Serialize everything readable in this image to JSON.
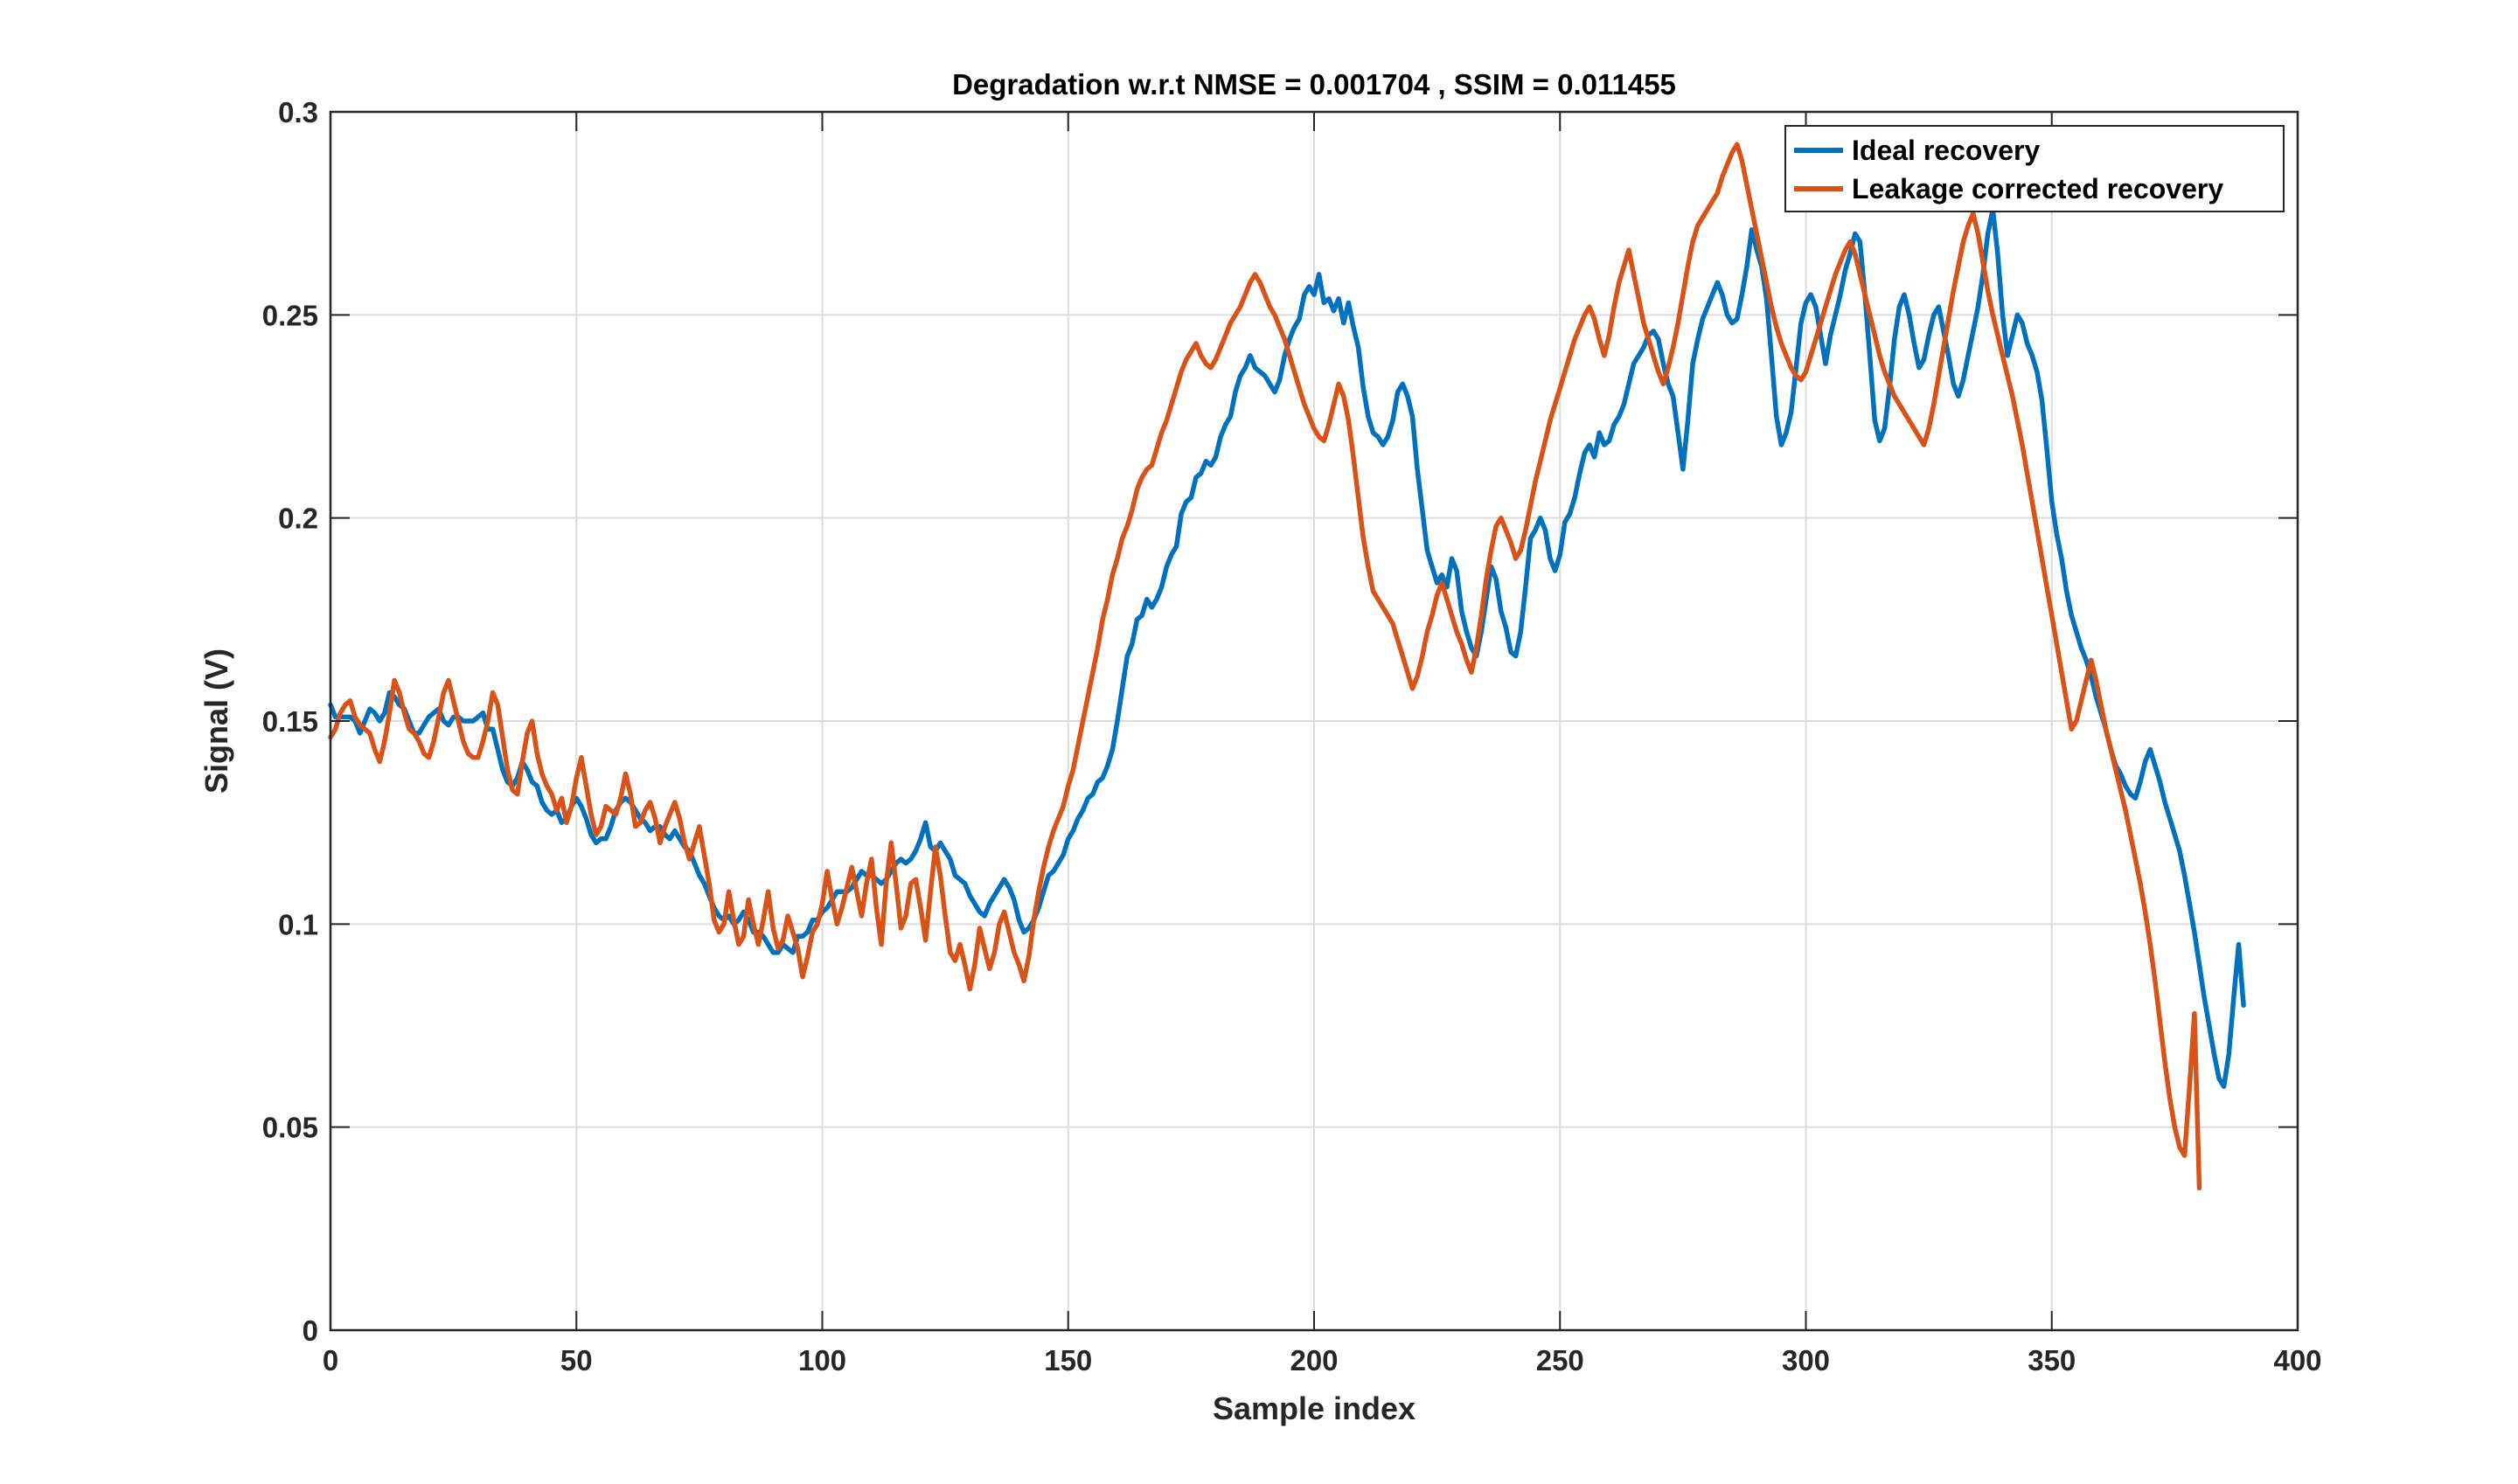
{
  "chart_data": {
    "type": "line",
    "title": "Degradation w.r.t NMSE = 0.001704 , SSIM = 0.011455",
    "xlabel": "Sample index",
    "ylabel": "Signal (V)",
    "xlim": [
      0,
      400
    ],
    "ylim": [
      0,
      0.3
    ],
    "xticks": [
      0,
      50,
      100,
      150,
      200,
      250,
      300,
      350,
      400
    ],
    "xtick_labels": [
      "0",
      "50",
      "100",
      "150",
      "200",
      "250",
      "300",
      "350",
      "400"
    ],
    "yticks": [
      0,
      0.05,
      0.1,
      0.15,
      0.2,
      0.25,
      0.3
    ],
    "ytick_labels": [
      "0",
      "0.05",
      "0.1",
      "0.15",
      "0.2",
      "0.25",
      "0.3"
    ],
    "grid": true,
    "legend_position": "top-right",
    "x_step": 1,
    "series": [
      {
        "name": "Ideal recovery",
        "color": "#0072BD",
        "x_start": 0,
        "values": [
          0.154,
          0.151,
          0.151,
          0.151,
          0.151,
          0.15,
          0.147,
          0.15,
          0.153,
          0.152,
          0.15,
          0.152,
          0.157,
          0.156,
          0.154,
          0.153,
          0.15,
          0.147,
          0.147,
          0.149,
          0.151,
          0.152,
          0.153,
          0.15,
          0.149,
          0.151,
          0.151,
          0.15,
          0.15,
          0.15,
          0.151,
          0.152,
          0.148,
          0.148,
          0.143,
          0.138,
          0.135,
          0.134,
          0.136,
          0.14,
          0.138,
          0.135,
          0.134,
          0.13,
          0.128,
          0.127,
          0.128,
          0.125,
          0.126,
          0.129,
          0.131,
          0.129,
          0.126,
          0.122,
          0.12,
          0.121,
          0.121,
          0.124,
          0.128,
          0.13,
          0.131,
          0.13,
          0.128,
          0.126,
          0.125,
          0.123,
          0.124,
          0.124,
          0.122,
          0.121,
          0.123,
          0.121,
          0.119,
          0.118,
          0.115,
          0.112,
          0.11,
          0.107,
          0.104,
          0.102,
          0.101,
          0.102,
          0.1,
          0.101,
          0.103,
          0.101,
          0.098,
          0.098,
          0.097,
          0.095,
          0.093,
          0.093,
          0.095,
          0.094,
          0.093,
          0.097,
          0.097,
          0.098,
          0.101,
          0.101,
          0.103,
          0.104,
          0.106,
          0.108,
          0.108,
          0.108,
          0.109,
          0.111,
          0.113,
          0.112,
          0.112,
          0.111,
          0.11,
          0.111,
          0.113,
          0.115,
          0.116,
          0.115,
          0.116,
          0.118,
          0.121,
          0.125,
          0.119,
          0.118,
          0.12,
          0.118,
          0.116,
          0.112,
          0.111,
          0.11,
          0.107,
          0.105,
          0.103,
          0.102,
          0.105,
          0.107,
          0.109,
          0.111,
          0.109,
          0.106,
          0.101,
          0.098,
          0.099,
          0.101,
          0.104,
          0.108,
          0.112,
          0.113,
          0.115,
          0.117,
          0.121,
          0.123,
          0.126,
          0.128,
          0.131,
          0.132,
          0.135,
          0.136,
          0.139,
          0.143,
          0.15,
          0.158,
          0.166,
          0.169,
          0.175,
          0.176,
          0.18,
          0.178,
          0.18,
          0.183,
          0.188,
          0.191,
          0.193,
          0.201,
          0.204,
          0.205,
          0.21,
          0.211,
          0.214,
          0.213,
          0.215,
          0.22,
          0.223,
          0.225,
          0.231,
          0.235,
          0.237,
          0.24,
          0.237,
          0.236,
          0.235,
          0.233,
          0.231,
          0.234,
          0.24,
          0.244,
          0.247,
          0.249,
          0.255,
          0.257,
          0.255,
          0.26,
          0.253,
          0.254,
          0.251,
          0.254,
          0.248,
          0.253,
          0.247,
          0.242,
          0.232,
          0.225,
          0.221,
          0.22,
          0.218,
          0.22,
          0.224,
          0.231,
          0.233,
          0.23,
          0.225,
          0.212,
          0.202,
          0.192,
          0.188,
          0.184,
          0.186,
          0.183,
          0.19,
          0.187,
          0.177,
          0.172,
          0.168,
          0.166,
          0.172,
          0.18,
          0.188,
          0.185,
          0.177,
          0.173,
          0.167,
          0.166,
          0.172,
          0.183,
          0.195,
          0.197,
          0.2,
          0.197,
          0.19,
          0.187,
          0.191,
          0.199,
          0.201,
          0.205,
          0.211,
          0.216,
          0.218,
          0.215,
          0.221,
          0.218,
          0.219,
          0.223,
          0.225,
          0.228,
          0.233,
          0.238,
          0.24,
          0.242,
          0.245,
          0.246,
          0.244,
          0.238,
          0.233,
          0.23,
          0.221,
          0.212,
          0.224,
          0.238,
          0.244,
          0.249,
          0.252,
          0.255,
          0.258,
          0.255,
          0.25,
          0.248,
          0.249,
          0.255,
          0.262,
          0.271,
          0.266,
          0.262,
          0.254,
          0.24,
          0.225,
          0.218,
          0.221,
          0.226,
          0.237,
          0.248,
          0.253,
          0.255,
          0.252,
          0.245,
          0.238,
          0.245,
          0.25,
          0.255,
          0.261,
          0.265,
          0.27,
          0.268,
          0.255,
          0.24,
          0.224,
          0.219,
          0.222,
          0.232,
          0.244,
          0.252,
          0.255,
          0.25,
          0.243,
          0.237,
          0.239,
          0.245,
          0.25,
          0.252,
          0.246,
          0.24,
          0.233,
          0.23,
          0.234,
          0.24,
          0.246,
          0.252,
          0.26,
          0.27,
          0.276,
          0.265,
          0.25,
          0.24,
          0.245,
          0.25,
          0.248,
          0.243,
          0.24,
          0.236,
          0.229,
          0.217,
          0.204,
          0.196,
          0.19,
          0.182,
          0.176,
          0.172,
          0.168,
          0.165,
          0.161,
          0.156,
          0.152,
          0.148,
          0.143,
          0.139,
          0.137,
          0.134,
          0.132,
          0.131,
          0.135,
          0.14,
          0.143,
          0.139,
          0.135,
          0.13,
          0.126,
          0.122,
          0.118,
          0.112,
          0.105,
          0.098,
          0.09,
          0.082,
          0.075,
          0.068,
          0.062,
          0.06,
          0.068,
          0.082,
          0.095,
          0.08
        ]
      },
      {
        "name": "Leakage corrected recovery",
        "color": "#D95319",
        "x_start": 0,
        "values": [
          0.146,
          0.148,
          0.152,
          0.154,
          0.155,
          0.151,
          0.149,
          0.148,
          0.147,
          0.143,
          0.14,
          0.145,
          0.152,
          0.16,
          0.157,
          0.152,
          0.148,
          0.147,
          0.145,
          0.142,
          0.141,
          0.145,
          0.151,
          0.157,
          0.16,
          0.155,
          0.15,
          0.145,
          0.142,
          0.141,
          0.141,
          0.145,
          0.15,
          0.157,
          0.154,
          0.146,
          0.138,
          0.133,
          0.132,
          0.14,
          0.147,
          0.15,
          0.142,
          0.137,
          0.134,
          0.132,
          0.128,
          0.131,
          0.125,
          0.129,
          0.136,
          0.141,
          0.134,
          0.127,
          0.122,
          0.124,
          0.129,
          0.128,
          0.127,
          0.131,
          0.137,
          0.132,
          0.124,
          0.125,
          0.128,
          0.13,
          0.126,
          0.12,
          0.124,
          0.127,
          0.13,
          0.126,
          0.12,
          0.116,
          0.12,
          0.124,
          0.117,
          0.11,
          0.101,
          0.098,
          0.1,
          0.108,
          0.101,
          0.095,
          0.097,
          0.106,
          0.1,
          0.095,
          0.101,
          0.108,
          0.099,
          0.094,
          0.096,
          0.102,
          0.098,
          0.094,
          0.087,
          0.092,
          0.098,
          0.1,
          0.105,
          0.113,
          0.106,
          0.1,
          0.104,
          0.109,
          0.114,
          0.108,
          0.102,
          0.11,
          0.116,
          0.104,
          0.095,
          0.11,
          0.12,
          0.11,
          0.099,
          0.102,
          0.11,
          0.111,
          0.104,
          0.096,
          0.108,
          0.119,
          0.112,
          0.102,
          0.093,
          0.091,
          0.095,
          0.09,
          0.084,
          0.09,
          0.099,
          0.094,
          0.089,
          0.093,
          0.1,
          0.103,
          0.098,
          0.093,
          0.09,
          0.086,
          0.092,
          0.101,
          0.108,
          0.114,
          0.119,
          0.123,
          0.126,
          0.129,
          0.134,
          0.138,
          0.144,
          0.15,
          0.156,
          0.162,
          0.168,
          0.175,
          0.18,
          0.186,
          0.19,
          0.195,
          0.198,
          0.202,
          0.207,
          0.21,
          0.212,
          0.213,
          0.217,
          0.221,
          0.224,
          0.228,
          0.232,
          0.236,
          0.239,
          0.241,
          0.243,
          0.24,
          0.238,
          0.237,
          0.239,
          0.242,
          0.245,
          0.248,
          0.25,
          0.252,
          0.255,
          0.258,
          0.26,
          0.258,
          0.255,
          0.252,
          0.25,
          0.247,
          0.244,
          0.24,
          0.236,
          0.232,
          0.228,
          0.225,
          0.222,
          0.22,
          0.219,
          0.223,
          0.228,
          0.233,
          0.23,
          0.224,
          0.215,
          0.205,
          0.195,
          0.188,
          0.182,
          0.18,
          0.178,
          0.176,
          0.174,
          0.17,
          0.166,
          0.162,
          0.158,
          0.161,
          0.166,
          0.172,
          0.176,
          0.181,
          0.184,
          0.18,
          0.176,
          0.172,
          0.169,
          0.165,
          0.162,
          0.168,
          0.176,
          0.185,
          0.192,
          0.198,
          0.2,
          0.197,
          0.194,
          0.19,
          0.192,
          0.197,
          0.203,
          0.209,
          0.214,
          0.219,
          0.224,
          0.228,
          0.232,
          0.236,
          0.24,
          0.244,
          0.247,
          0.25,
          0.252,
          0.249,
          0.244,
          0.24,
          0.245,
          0.252,
          0.258,
          0.262,
          0.266,
          0.26,
          0.254,
          0.248,
          0.244,
          0.24,
          0.236,
          0.233,
          0.237,
          0.242,
          0.248,
          0.255,
          0.262,
          0.268,
          0.272,
          0.274,
          0.276,
          0.278,
          0.28,
          0.284,
          0.287,
          0.29,
          0.292,
          0.288,
          0.282,
          0.276,
          0.27,
          0.264,
          0.258,
          0.252,
          0.247,
          0.243,
          0.24,
          0.237,
          0.235,
          0.234,
          0.236,
          0.24,
          0.244,
          0.248,
          0.252,
          0.256,
          0.26,
          0.263,
          0.266,
          0.268,
          0.265,
          0.26,
          0.255,
          0.25,
          0.245,
          0.24,
          0.236,
          0.233,
          0.23,
          0.228,
          0.226,
          0.224,
          0.222,
          0.22,
          0.218,
          0.222,
          0.228,
          0.235,
          0.242,
          0.249,
          0.256,
          0.262,
          0.268,
          0.272,
          0.275,
          0.27,
          0.263,
          0.256,
          0.25,
          0.245,
          0.24,
          0.235,
          0.23,
          0.224,
          0.218,
          0.211,
          0.204,
          0.197,
          0.19,
          0.183,
          0.176,
          0.169,
          0.162,
          0.155,
          0.148,
          0.15,
          0.155,
          0.16,
          0.165,
          0.16,
          0.154,
          0.148,
          0.143,
          0.138,
          0.133,
          0.128,
          0.122,
          0.116,
          0.11,
          0.103,
          0.095,
          0.086,
          0.076,
          0.066,
          0.057,
          0.05,
          0.045,
          0.043,
          0.06,
          0.078,
          0.035
        ]
      }
    ]
  }
}
